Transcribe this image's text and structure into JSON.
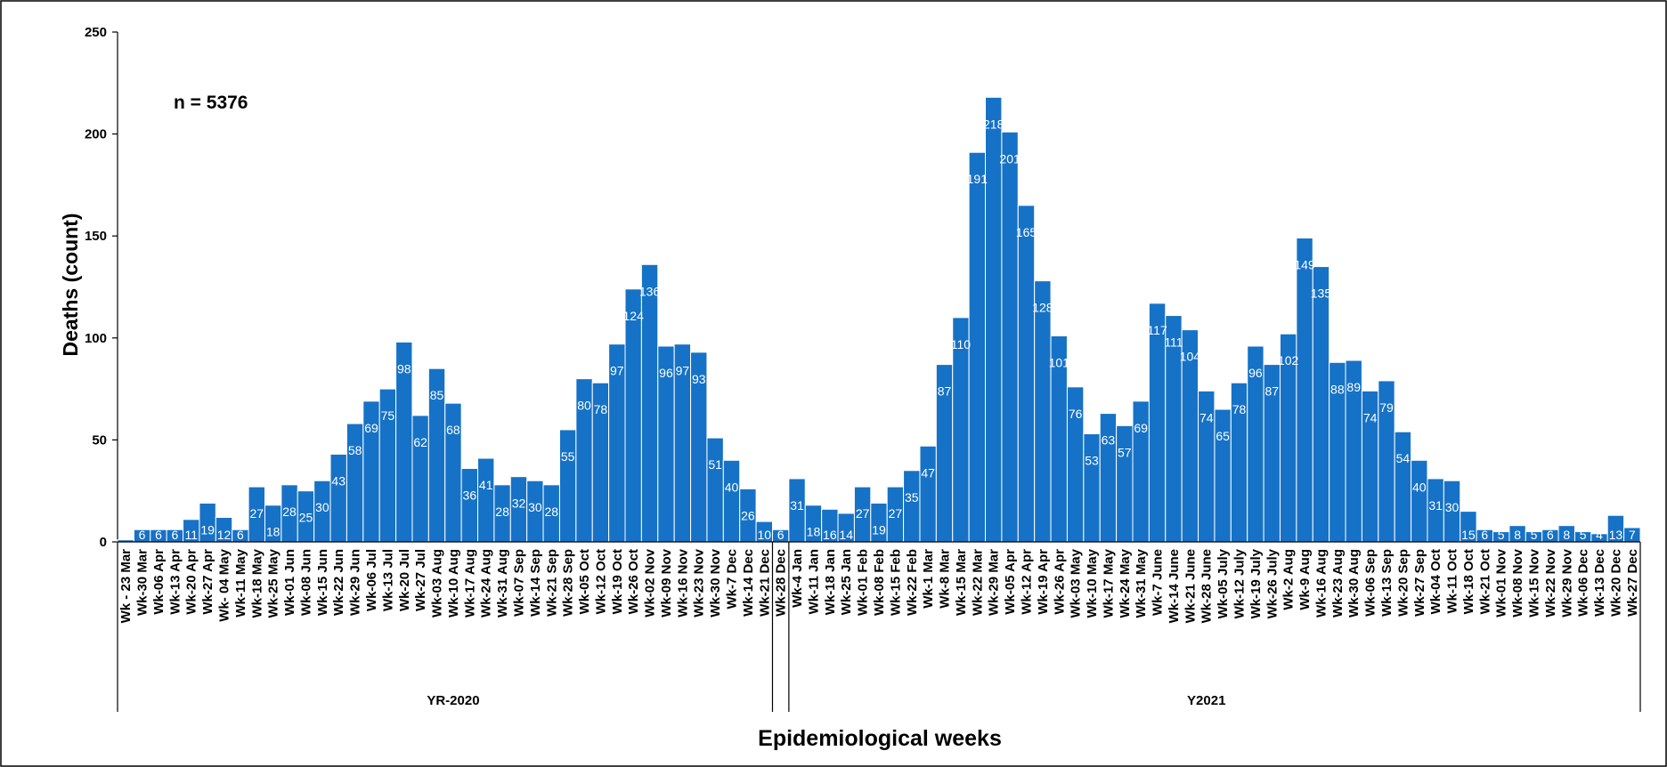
{
  "chart_data": {
    "type": "bar",
    "ylabel": "Deaths (count)",
    "xlabel": "Epidemiological weeks",
    "annotation": "n = 5376",
    "ylim": [
      0,
      250
    ],
    "yticks": [
      0,
      50,
      100,
      150,
      200,
      250
    ],
    "grid": false,
    "bar_color": "#1672c6",
    "groups": [
      {
        "label": "YR-2020",
        "start": 0,
        "end": 40
      },
      {
        "label": "Y2021",
        "start": 40,
        "end": 92
      }
    ],
    "categories": [
      "Wk - 23 Mar",
      "Wk-30 Mar",
      "Wk-06 Apr",
      "Wk-13 Apr",
      "Wk-20 Apr",
      "Wk-27 Apr",
      "Wk- 04 May",
      "Wk-11 May",
      "Wk-18 May",
      "Wk-25 May",
      "Wk-01 Jun",
      "Wk-08 Jun",
      "Wk-15 Jun",
      "Wk-22 Jun",
      "Wk-29 Jun",
      "Wk-06 Jul",
      "Wk-13 Jul",
      "Wk-20 Jul",
      "Wk-27 Jul",
      "Wk-03 Aug",
      "Wk-10 Aug",
      "Wk-17 Aug",
      "Wk-24 Aug",
      "Wk-31 Aug",
      "Wk-07 Sep",
      "Wk-14 Sep",
      "Wk-21 Sep",
      "Wk-28 Sep",
      "Wk-05 Oct",
      "Wk-12 Oct",
      "Wk-19 Oct",
      "Wk-26 Oct",
      "Wk-02 Nov",
      "Wk-09 Nov",
      "Wk-16 Nov",
      "Wk-23 Nov",
      "Wk-30 Nov",
      "Wk-7 Dec",
      "Wk-14 Dec",
      "Wk-21 Dec",
      "Wk-28 Dec",
      "Wk-4 Jan",
      "Wk-11 Jan",
      "Wk-18 Jan",
      "Wk-25 Jan",
      "Wk-01 Feb",
      "Wk-08 Feb",
      "Wk-15 Feb",
      "Wk-22 Feb",
      "Wk-1 Mar",
      "Wk-8 Mar",
      "Wk-15 Mar",
      "Wk-22 Mar",
      "Wk-29 Mar",
      "Wk-05 Apr",
      "Wk-12 Apr",
      "Wk-19 Apr",
      "Wk-26 Apr",
      "Wk-03 May",
      "Wk-10 May",
      "Wk-17 May",
      "Wk-24 May",
      "Wk-31 May",
      "Wk-7 June",
      "Wk-14 June",
      "Wk-21 June",
      "Wk-28 June",
      "Wk-05 July",
      "Wk-12 July",
      "Wk-19 July",
      "Wk-26 July",
      "Wk-2 Aug",
      "Wk-9 Aug",
      "Wk-16 Aug",
      "Wk-23 Aug",
      "Wk-30 Aug",
      "Wk-06 Sep",
      "Wk-13 Sep",
      "Wk-20 Sep",
      "Wk-27 Sep",
      "Wk-04 Oct",
      "Wk-11 Oct",
      "Wk-18 Oct",
      "Wk-21 Oct",
      "Wk-01 Nov",
      "Wk-08 Nov",
      "Wk-15 Nov",
      "Wk-22 Nov",
      "Wk-29 Nov",
      "Wk-06 Dec",
      "Wk-13 Dec",
      "Wk-20 Dec",
      "Wk-27 Dec"
    ],
    "values": [
      1,
      6,
      6,
      6,
      11,
      19,
      12,
      6,
      27,
      18,
      28,
      25,
      30,
      43,
      58,
      69,
      75,
      98,
      62,
      85,
      68,
      36,
      41,
      28,
      32,
      30,
      28,
      55,
      80,
      78,
      97,
      124,
      136,
      96,
      97,
      93,
      51,
      40,
      26,
      10,
      6,
      31,
      18,
      16,
      14,
      27,
      19,
      27,
      35,
      47,
      87,
      110,
      191,
      218,
      201,
      165,
      128,
      101,
      76,
      53,
      63,
      57,
      69,
      117,
      111,
      104,
      74,
      65,
      78,
      96,
      87,
      102,
      149,
      135,
      88,
      89,
      74,
      79,
      54,
      40,
      31,
      30,
      15,
      6,
      5,
      8,
      5,
      6,
      8,
      5,
      4,
      13,
      7
    ]
  }
}
